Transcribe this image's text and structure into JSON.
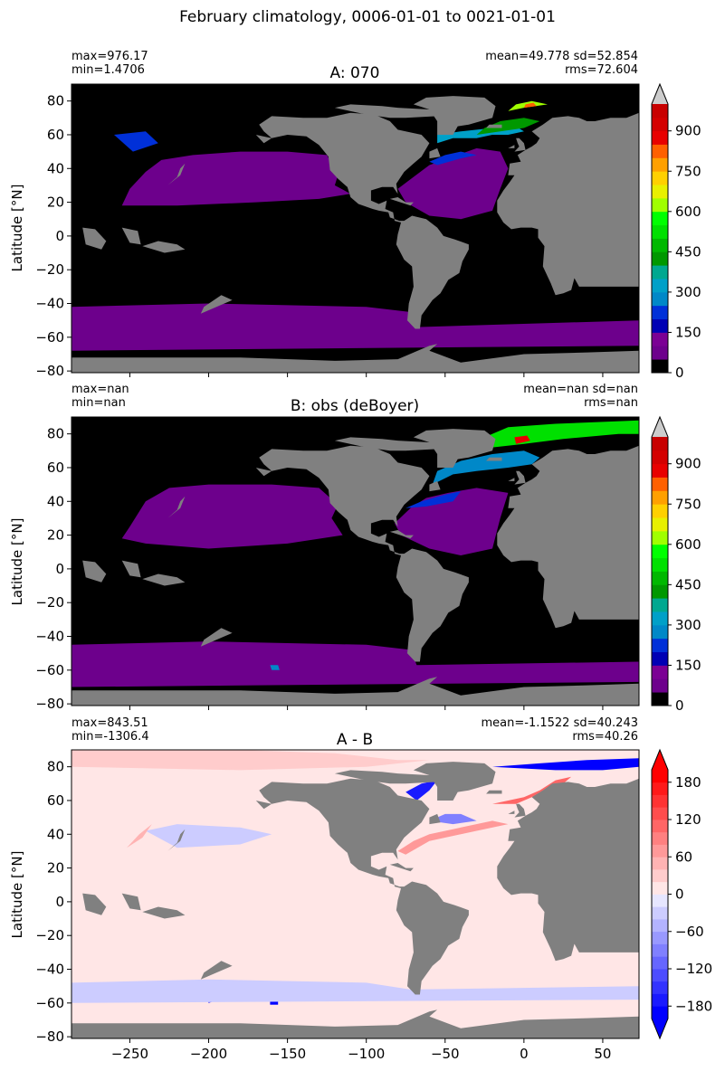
{
  "figure_title": "February climatology, 0006-01-01 to 0021-01-01",
  "chart_data": [
    {
      "type": "heatmap",
      "title": "A: 070",
      "stats_left": [
        "max=976.17",
        "min=1.4706"
      ],
      "stats_right": [
        "mean=49.778 sd=52.854",
        "rms=72.604"
      ],
      "ylabel": "Latitude [°N]",
      "xlabel": "",
      "xlim": [
        -287,
        73
      ],
      "ylim": [
        -81,
        90
      ],
      "yticks": [
        80,
        60,
        40,
        20,
        0,
        -20,
        -40,
        -60,
        -80
      ],
      "yticklabels": [
        "80",
        "60",
        "40",
        "20",
        "0",
        "−20",
        "−40",
        "−60",
        "−80"
      ],
      "colorbar": {
        "range": [
          0,
          1000
        ],
        "ticks": [
          0,
          150,
          300,
          450,
          600,
          750,
          900
        ],
        "ticklabels": [
          "0",
          "150",
          "300",
          "450",
          "600",
          "750",
          "900"
        ],
        "levels": [
          0,
          50,
          100,
          150,
          200,
          250,
          300,
          350,
          400,
          450,
          500,
          550,
          600,
          650,
          700,
          750,
          800,
          850,
          900,
          950,
          1000
        ],
        "colors": [
          "#000000",
          "#6d008c",
          "#7b0094",
          "#0000b4",
          "#0030d8",
          "#0088c8",
          "#00a0c8",
          "#00a890",
          "#009800",
          "#00b800",
          "#00e000",
          "#00ff00",
          "#a0ff00",
          "#e8f000",
          "#ffd000",
          "#ffa000",
          "#ff6000",
          "#e80000",
          "#d40000",
          "#c80000"
        ],
        "extend": "max",
        "extend_color": "#cccccc"
      }
    },
    {
      "type": "heatmap",
      "title": "B: obs (deBoyer)",
      "stats_left": [
        "max=nan",
        "min=nan"
      ],
      "stats_right": [
        "mean=nan sd=nan",
        "rms=nan"
      ],
      "ylabel": "Latitude [°N]",
      "xlabel": "",
      "xlim": [
        -287,
        73
      ],
      "ylim": [
        -81,
        90
      ],
      "yticks": [
        80,
        60,
        40,
        20,
        0,
        -20,
        -40,
        -60,
        -80
      ],
      "yticklabels": [
        "80",
        "60",
        "40",
        "20",
        "0",
        "−20",
        "−40",
        "−60",
        "−80"
      ],
      "colorbar": {
        "range": [
          0,
          1000
        ],
        "ticks": [
          0,
          150,
          300,
          450,
          600,
          750,
          900
        ],
        "ticklabels": [
          "0",
          "150",
          "300",
          "450",
          "600",
          "750",
          "900"
        ],
        "levels": [
          0,
          50,
          100,
          150,
          200,
          250,
          300,
          350,
          400,
          450,
          500,
          550,
          600,
          650,
          700,
          750,
          800,
          850,
          900,
          950,
          1000
        ],
        "colors": [
          "#000000",
          "#6d008c",
          "#7b0094",
          "#0000b4",
          "#0030d8",
          "#0088c8",
          "#00a0c8",
          "#00a890",
          "#009800",
          "#00b800",
          "#00e000",
          "#00ff00",
          "#a0ff00",
          "#e8f000",
          "#ffd000",
          "#ffa000",
          "#ff6000",
          "#e80000",
          "#d40000",
          "#c80000"
        ],
        "extend": "max",
        "extend_color": "#cccccc"
      }
    },
    {
      "type": "heatmap",
      "title": "A - B",
      "stats_left": [
        "max=843.51",
        "min=-1306.4"
      ],
      "stats_right": [
        "mean=-1.1522 sd=40.243",
        "rms=40.26"
      ],
      "ylabel": "Latitude [°N]",
      "xlabel": "",
      "xlim": [
        -287,
        73
      ],
      "ylim": [
        -81,
        90
      ],
      "yticks": [
        80,
        60,
        40,
        20,
        0,
        -20,
        -40,
        -60,
        -80
      ],
      "yticklabels": [
        "80",
        "60",
        "40",
        "20",
        "0",
        "−20",
        "−40",
        "−60",
        "−80"
      ],
      "xticks": [
        -250,
        -200,
        -150,
        -100,
        -50,
        0,
        50
      ],
      "xticklabels": [
        "−250",
        "−200",
        "−150",
        "−100",
        "−50",
        "0",
        "50"
      ],
      "colorbar": {
        "range": [
          -200,
          200
        ],
        "ticks": [
          -180,
          -120,
          -60,
          0,
          60,
          120,
          180
        ],
        "ticklabels": [
          "−180",
          "−120",
          "−60",
          "0",
          "60",
          "120",
          "180"
        ],
        "levels": [
          -200,
          -180,
          -160,
          -140,
          -120,
          -100,
          -80,
          -60,
          -40,
          -20,
          0,
          20,
          40,
          60,
          80,
          100,
          120,
          140,
          160,
          180,
          200
        ],
        "colors": [
          "#0000ff",
          "#1a1aff",
          "#3333ff",
          "#4d4dff",
          "#6666ff",
          "#8080ff",
          "#9999ff",
          "#b3b3ff",
          "#ccccff",
          "#e6e6ff",
          "#ffe6e6",
          "#ffcccc",
          "#ffb3b3",
          "#ff9999",
          "#ff8080",
          "#ff6666",
          "#ff4d4d",
          "#ff3333",
          "#ff1a1a",
          "#ff0000"
        ],
        "extend": "both",
        "extend_color_low": "#0000ff",
        "extend_color_high": "#ff0000"
      }
    }
  ],
  "colors": {
    "land": "#808080",
    "background": "#ffffff"
  }
}
